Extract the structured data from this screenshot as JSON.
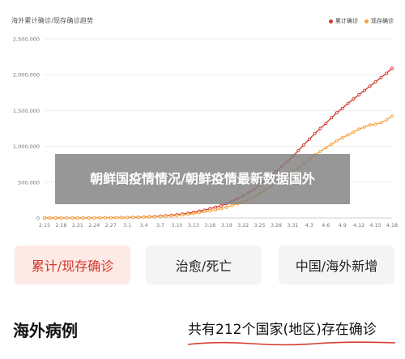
{
  "header": {
    "chart_title": "海外累计确诊/现存确诊趋势"
  },
  "legend": [
    {
      "label": "累计确诊",
      "color": "#d43a2f"
    },
    {
      "label": "现存确诊",
      "color": "#f5a13b"
    }
  ],
  "overlay": {
    "text": "朝鲜国疫情情况/朝鲜疫情最新数据国外"
  },
  "tabs": [
    {
      "label": "累计/现存确诊",
      "active": true
    },
    {
      "label": "治愈/死亡",
      "active": false
    },
    {
      "label": "中国/海外新增",
      "active": false
    }
  ],
  "footer": {
    "title": "海外病例",
    "summary": "共有212个国家(地区)存在确诊"
  },
  "chart_data": {
    "type": "line",
    "title": "海外累计确诊/现存确诊趋势",
    "categories": [
      "2.15",
      "2.18",
      "2.21",
      "2.24",
      "2.27",
      "3.1",
      "3.4",
      "3.7",
      "3.10",
      "3.13",
      "3.16",
      "3.19",
      "3.22",
      "3.25",
      "3.28",
      "3.31",
      "4.3",
      "4.6",
      "4.9",
      "4.12",
      "4.15",
      "4.18"
    ],
    "ylim": [
      0,
      2500000
    ],
    "yticks": [
      0,
      500000,
      1000000,
      1500000,
      2000000,
      2500000
    ],
    "ytick_labels": [
      "0",
      "500,000",
      "1,000,000",
      "1,500,000",
      "2,000,000",
      "2,500,000"
    ],
    "grid": true,
    "legend_position": "top-right",
    "series": [
      {
        "name": "累计确诊",
        "color": "#d43a2f",
        "x": [
          "2.15",
          "2.16",
          "2.17",
          "2.18",
          "2.19",
          "2.20",
          "2.21",
          "2.22",
          "2.23",
          "2.24",
          "2.25",
          "2.26",
          "2.27",
          "2.28",
          "2.29",
          "3.1",
          "3.2",
          "3.3",
          "3.4",
          "3.5",
          "3.6",
          "3.7",
          "3.8",
          "3.9",
          "3.10",
          "3.11",
          "3.12",
          "3.13",
          "3.14",
          "3.15",
          "3.16",
          "3.17",
          "3.18",
          "3.19",
          "3.20",
          "3.21",
          "3.22",
          "3.23",
          "3.24",
          "3.25",
          "3.26",
          "3.27",
          "3.28",
          "3.29",
          "3.30",
          "3.31",
          "4.1",
          "4.2",
          "4.3",
          "4.4",
          "4.5",
          "4.6",
          "4.7",
          "4.8",
          "4.9",
          "4.10",
          "4.11",
          "4.12",
          "4.13",
          "4.14",
          "4.15",
          "4.16",
          "4.17",
          "4.18"
        ],
        "values": [
          600,
          650,
          700,
          750,
          800,
          900,
          1000,
          1200,
          1500,
          2000,
          2500,
          3200,
          4000,
          5000,
          6500,
          8000,
          10000,
          12000,
          15000,
          18000,
          22000,
          27000,
          32000,
          38000,
          45000,
          55000,
          65000,
          80000,
          95000,
          110000,
          130000,
          150000,
          170000,
          200000,
          235000,
          270000,
          310000,
          350000,
          400000,
          460000,
          520000,
          590000,
          650000,
          720000,
          790000,
          860000,
          940000,
          1020000,
          1100000,
          1180000,
          1250000,
          1320000,
          1400000,
          1470000,
          1530000,
          1600000,
          1660000,
          1720000,
          1780000,
          1840000,
          1900000,
          1960000,
          2020000,
          2090000
        ]
      },
      {
        "name": "现存确诊",
        "color": "#f5a13b",
        "x": [
          "2.15",
          "2.16",
          "2.17",
          "2.18",
          "2.19",
          "2.20",
          "2.21",
          "2.22",
          "2.23",
          "2.24",
          "2.25",
          "2.26",
          "2.27",
          "2.28",
          "2.29",
          "3.1",
          "3.2",
          "3.3",
          "3.4",
          "3.5",
          "3.6",
          "3.7",
          "3.8",
          "3.9",
          "3.10",
          "3.11",
          "3.12",
          "3.13",
          "3.14",
          "3.15",
          "3.16",
          "3.17",
          "3.18",
          "3.19",
          "3.20",
          "3.21",
          "3.22",
          "3.23",
          "3.24",
          "3.25",
          "3.26",
          "3.27",
          "3.28",
          "3.29",
          "3.30",
          "3.31",
          "4.1",
          "4.2",
          "4.3",
          "4.4",
          "4.5",
          "4.6",
          "4.7",
          "4.8",
          "4.9",
          "4.10",
          "4.11",
          "4.12",
          "4.13",
          "4.14",
          "4.15",
          "4.16",
          "4.17",
          "4.18"
        ],
        "values": [
          500,
          550,
          600,
          650,
          700,
          800,
          900,
          1100,
          1400,
          1800,
          2200,
          2800,
          3500,
          4200,
          5500,
          7000,
          8500,
          10000,
          12500,
          15000,
          18000,
          22000,
          26000,
          30000,
          36000,
          44000,
          52000,
          63000,
          75000,
          88000,
          100000,
          115000,
          130000,
          150000,
          175000,
          200000,
          230000,
          260000,
          300000,
          340000,
          390000,
          440000,
          490000,
          540000,
          590000,
          640000,
          700000,
          760000,
          820000,
          880000,
          930000,
          980000,
          1030000,
          1080000,
          1120000,
          1160000,
          1200000,
          1240000,
          1270000,
          1300000,
          1310000,
          1330000,
          1370000,
          1420000
        ]
      }
    ]
  }
}
